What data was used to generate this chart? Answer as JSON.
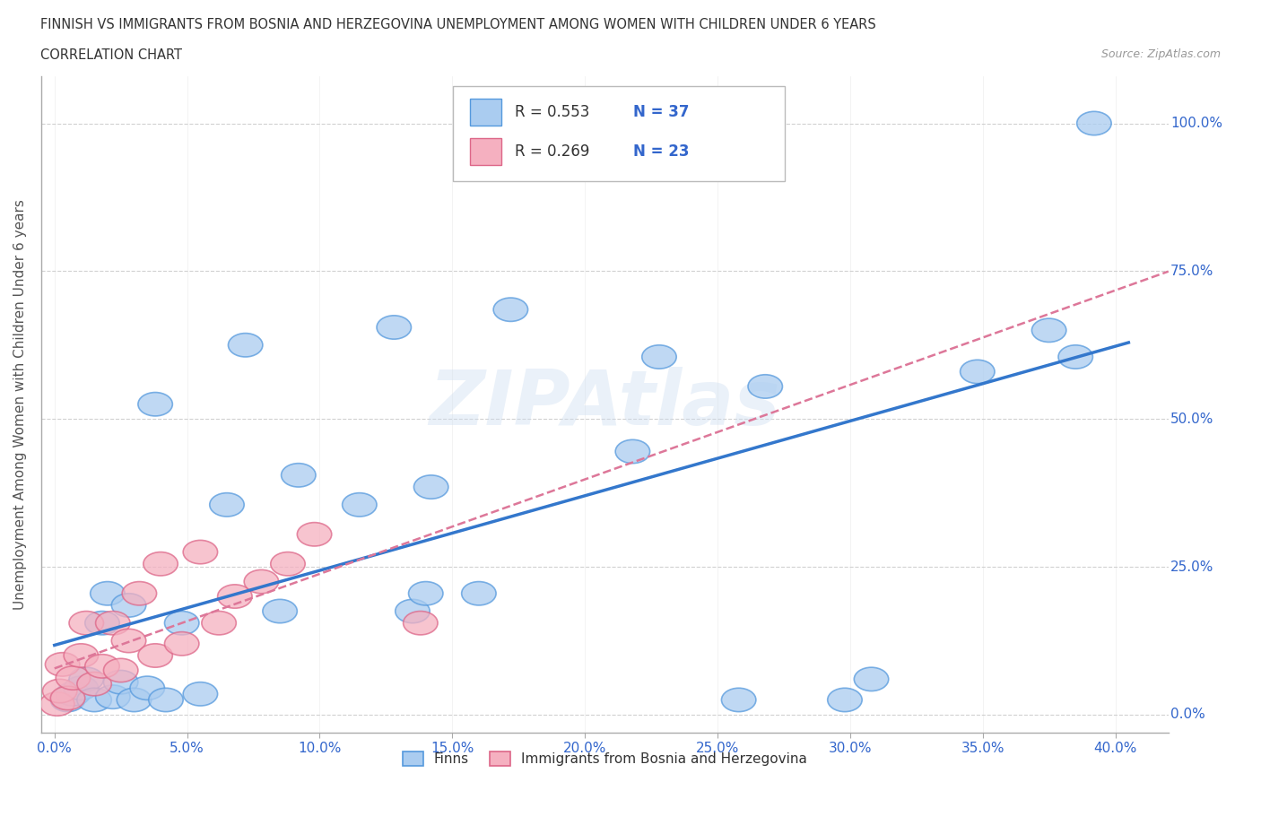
{
  "title_line1": "FINNISH VS IMMIGRANTS FROM BOSNIA AND HERZEGOVINA UNEMPLOYMENT AMONG WOMEN WITH CHILDREN UNDER 6 YEARS",
  "title_line2": "CORRELATION CHART",
  "source_text": "Source: ZipAtlas.com",
  "ylabel": "Unemployment Among Women with Children Under 6 years",
  "xlim": [
    -0.005,
    0.42
  ],
  "ylim": [
    -0.03,
    1.08
  ],
  "xtick_values": [
    0.0,
    0.05,
    0.1,
    0.15,
    0.2,
    0.25,
    0.3,
    0.35,
    0.4
  ],
  "xtick_labels": [
    "0.0%",
    "5.0%",
    "10.0%",
    "15.0%",
    "20.0%",
    "25.0%",
    "30.0%",
    "35.0%",
    "40.0%"
  ],
  "ytick_values": [
    0.0,
    0.25,
    0.5,
    0.75,
    1.0
  ],
  "ytick_labels": [
    "0.0%",
    "25.0%",
    "50.0%",
    "75.0%",
    "100.0%"
  ],
  "R_finns": 0.553,
  "N_finns": 37,
  "R_immigrants": 0.269,
  "N_immigrants": 23,
  "finns_color": "#aaccf0",
  "finns_edge_color": "#5599dd",
  "immigrants_color": "#f5b0c0",
  "immigrants_edge_color": "#dd6688",
  "finns_line_color": "#3377cc",
  "immigrants_line_color": "#dd7799",
  "legend_label_finns": "Finns",
  "legend_label_immigrants": "Immigrants from Bosnia and Herzegovina",
  "watermark": "ZIPAtlas",
  "tick_color": "#3366cc",
  "finns_x": [
    0.005,
    0.007,
    0.01,
    0.012,
    0.015,
    0.018,
    0.02,
    0.022,
    0.025,
    0.028,
    0.03,
    0.035,
    0.038,
    0.042,
    0.048,
    0.055,
    0.065,
    0.072,
    0.085,
    0.092,
    0.115,
    0.128,
    0.135,
    0.14,
    0.142,
    0.16,
    0.172,
    0.218,
    0.228,
    0.258,
    0.268,
    0.298,
    0.308,
    0.348,
    0.375,
    0.385,
    0.392
  ],
  "finns_y": [
    0.025,
    0.035,
    0.045,
    0.06,
    0.025,
    0.155,
    0.205,
    0.03,
    0.055,
    0.185,
    0.025,
    0.045,
    0.525,
    0.025,
    0.155,
    0.035,
    0.355,
    0.625,
    0.175,
    0.405,
    0.355,
    0.655,
    0.175,
    0.205,
    0.385,
    0.205,
    0.685,
    0.445,
    0.605,
    0.025,
    0.555,
    0.025,
    0.06,
    0.58,
    0.65,
    0.605,
    1.0
  ],
  "immigrants_x": [
    0.001,
    0.002,
    0.003,
    0.005,
    0.007,
    0.01,
    0.012,
    0.015,
    0.018,
    0.022,
    0.025,
    0.028,
    0.032,
    0.038,
    0.04,
    0.048,
    0.055,
    0.062,
    0.068,
    0.078,
    0.088,
    0.098,
    0.138
  ],
  "immigrants_y": [
    0.018,
    0.04,
    0.085,
    0.028,
    0.062,
    0.1,
    0.155,
    0.052,
    0.082,
    0.155,
    0.075,
    0.125,
    0.205,
    0.1,
    0.255,
    0.12,
    0.275,
    0.155,
    0.2,
    0.225,
    0.255,
    0.305,
    0.155
  ]
}
